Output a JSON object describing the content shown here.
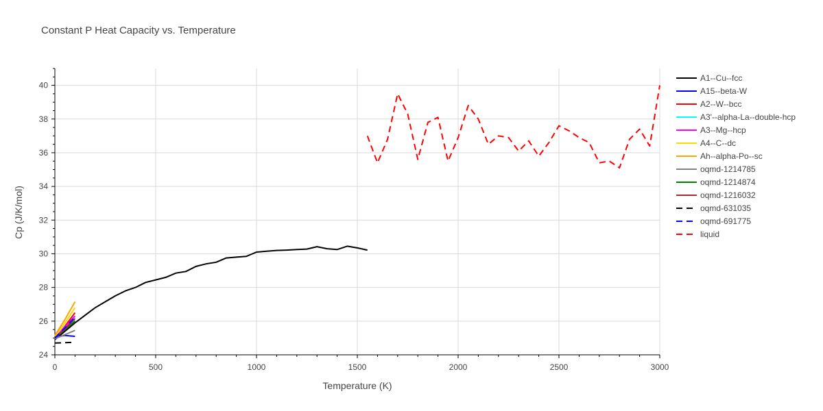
{
  "chart_data": {
    "type": "line",
    "title": "Constant P Heat Capacity vs. Temperature",
    "xlabel": "Temperature (K)",
    "ylabel": "Cp (J/K/mol)",
    "xlim": [
      0,
      3000
    ],
    "ylim": [
      24,
      41
    ],
    "x_ticks": [
      0,
      500,
      1000,
      1500,
      2000,
      2500,
      3000
    ],
    "x_tick_labels": [
      "0",
      "500",
      "1000",
      "1500",
      "2000",
      "2500",
      "3000"
    ],
    "y_ticks": [
      24,
      26,
      28,
      30,
      32,
      34,
      36,
      38,
      40
    ],
    "y_tick_labels": [
      "24",
      "26",
      "28",
      "30",
      "32",
      "34",
      "36",
      "38",
      "40"
    ],
    "grid": true,
    "legend_position": "right",
    "series": [
      {
        "name": "A1--Cu--fcc",
        "color": "#000000",
        "dash": "solid",
        "x": [
          0,
          50,
          100,
          150,
          200,
          250,
          300,
          350,
          400,
          450,
          500,
          550,
          600,
          650,
          700,
          750,
          800,
          850,
          900,
          950,
          1000,
          1050,
          1100,
          1150,
          1200,
          1250,
          1300,
          1350,
          1400,
          1450,
          1500,
          1550
        ],
        "y": [
          24.9,
          25.4,
          25.9,
          26.35,
          26.8,
          27.15,
          27.5,
          27.8,
          28.0,
          28.3,
          28.45,
          28.6,
          28.85,
          28.95,
          29.25,
          29.4,
          29.5,
          29.75,
          29.8,
          29.85,
          30.1,
          30.15,
          30.2,
          30.22,
          30.25,
          30.28,
          30.42,
          30.3,
          30.25,
          30.45,
          30.35,
          30.22
        ]
      },
      {
        "name": "A15--beta-W",
        "color": "#0000ff",
        "dash": "solid",
        "x": [
          0,
          50,
          100
        ],
        "y": [
          25.05,
          25.15,
          25.1
        ]
      },
      {
        "name": "A2--W--bcc",
        "color": "#ff0000",
        "dash": "solid",
        "x": [
          0,
          50,
          100
        ],
        "y": [
          24.95,
          25.7,
          26.5
        ]
      },
      {
        "name": "A3'--alpha-La--double-hcp",
        "color": "#00ffff",
        "dash": "solid",
        "x": [
          0,
          50,
          100
        ],
        "y": [
          25.0,
          25.55,
          26.1
        ]
      },
      {
        "name": "A3--Mg--hcp",
        "color": "#ff00ff",
        "dash": "solid",
        "x": [
          0,
          50,
          100
        ],
        "y": [
          25.0,
          25.65,
          26.3
        ]
      },
      {
        "name": "A4--C--dc",
        "color": "#ffd700",
        "dash": "solid",
        "x": [
          0,
          50,
          100
        ],
        "y": [
          25.1,
          25.9,
          26.8
        ]
      },
      {
        "name": "Ah--alpha-Po--sc",
        "color": "#ffa500",
        "dash": "solid",
        "x": [
          0,
          50,
          100
        ],
        "y": [
          25.15,
          26.1,
          27.15
        ]
      },
      {
        "name": "oqmd-1214785",
        "color": "#808080",
        "dash": "solid",
        "x": [
          0,
          50,
          100
        ],
        "y": [
          24.95,
          25.2,
          25.45
        ]
      },
      {
        "name": "oqmd-1214874",
        "color": "#008000",
        "dash": "solid",
        "x": [
          0,
          50,
          100
        ],
        "y": [
          25.0,
          25.5,
          26.0
        ]
      },
      {
        "name": "oqmd-1216032",
        "color": "#a52a2a",
        "dash": "solid",
        "x": [
          0,
          50,
          100
        ],
        "y": [
          25.0,
          25.55,
          26.15
        ]
      },
      {
        "name": "oqmd-631035",
        "color": "#000000",
        "dash": "dash",
        "x": [
          0,
          50,
          100
        ],
        "y": [
          24.7,
          24.72,
          24.75
        ]
      },
      {
        "name": "oqmd-691775",
        "color": "#0000ff",
        "dash": "dash",
        "x": [
          0,
          50,
          100
        ],
        "y": [
          25.0,
          25.6,
          26.25
        ]
      },
      {
        "name": "liquid",
        "color": "#ff0000",
        "dash": "dash",
        "x": [
          1550,
          1600,
          1650,
          1700,
          1750,
          1800,
          1850,
          1900,
          1950,
          2000,
          2050,
          2100,
          2150,
          2200,
          2250,
          2300,
          2350,
          2400,
          2450,
          2500,
          2550,
          2600,
          2650,
          2700,
          2750,
          2800,
          2850,
          2900,
          2950,
          3000
        ],
        "y": [
          37.0,
          35.4,
          36.8,
          39.5,
          38.3,
          35.6,
          37.8,
          38.1,
          35.5,
          36.9,
          38.8,
          38.0,
          36.5,
          37.0,
          36.9,
          36.1,
          36.7,
          35.8,
          36.6,
          37.6,
          37.3,
          36.9,
          36.6,
          35.4,
          35.5,
          35.1,
          36.8,
          37.4,
          36.4,
          40.0
        ]
      }
    ]
  }
}
